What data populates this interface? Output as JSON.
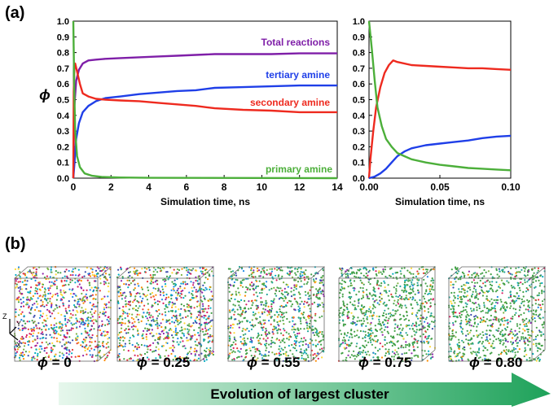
{
  "colors": {
    "total": "#7f1fa8",
    "tertiary": "#1f3fe8",
    "secondary": "#ee2a1f",
    "primary": "#4caf3a",
    "arrow_start": "#e6f7ec",
    "arrow_end": "#1ea25a"
  },
  "panel_a_label": "(a)",
  "panel_b_label": "(b)",
  "chart_data": [
    {
      "type": "line",
      "title": "",
      "xlabel": "Simulation time, ns",
      "ylabel": "ϕ",
      "xlim": [
        0,
        14
      ],
      "ylim": [
        0,
        1.0
      ],
      "xticks": [
        "0",
        "2",
        "4",
        "6",
        "8",
        "10",
        "12",
        "14"
      ],
      "yticks": [
        "0.0",
        "0.1",
        "0.2",
        "0.3",
        "0.4",
        "0.5",
        "0.6",
        "0.7",
        "0.8",
        "0.9",
        "1.0"
      ],
      "series": [
        {
          "name": "Total reactions",
          "color_key": "total",
          "x": [
            0,
            0.05,
            0.15,
            0.3,
            0.5,
            0.8,
            1.2,
            1.7,
            2.5,
            3.5,
            4.5,
            5.5,
            6.5,
            7.5,
            9,
            10.5,
            12,
            14
          ],
          "y": [
            0.0,
            0.45,
            0.62,
            0.69,
            0.73,
            0.75,
            0.755,
            0.76,
            0.765,
            0.77,
            0.775,
            0.78,
            0.785,
            0.79,
            0.79,
            0.79,
            0.795,
            0.795
          ]
        },
        {
          "name": "tertiary amine",
          "color_key": "tertiary",
          "x": [
            0,
            0.05,
            0.15,
            0.3,
            0.5,
            0.8,
            1.2,
            1.7,
            2.5,
            3.5,
            4.5,
            5.5,
            6.5,
            7.5,
            9,
            10.5,
            12,
            14
          ],
          "y": [
            0.0,
            0.08,
            0.25,
            0.35,
            0.42,
            0.46,
            0.49,
            0.51,
            0.52,
            0.535,
            0.545,
            0.555,
            0.56,
            0.575,
            0.58,
            0.585,
            0.59,
            0.59
          ]
        },
        {
          "name": "secondary amine",
          "color_key": "secondary",
          "x": [
            0,
            0.02,
            0.06,
            0.1,
            0.2,
            0.35,
            0.5,
            0.8,
            1.2,
            1.7,
            2.5,
            3.5,
            4.5,
            5.5,
            6.5,
            7.5,
            9,
            10.5,
            12,
            14
          ],
          "y": [
            0.0,
            0.55,
            0.72,
            0.73,
            0.68,
            0.6,
            0.54,
            0.52,
            0.505,
            0.5,
            0.495,
            0.49,
            0.48,
            0.47,
            0.46,
            0.445,
            0.435,
            0.43,
            0.42,
            0.42
          ]
        },
        {
          "name": "primary amine",
          "color_key": "primary",
          "x": [
            0,
            0.05,
            0.1,
            0.2,
            0.35,
            0.6,
            1.0,
            1.5,
            2.5,
            4,
            14
          ],
          "y": [
            1.0,
            0.55,
            0.3,
            0.14,
            0.07,
            0.03,
            0.015,
            0.008,
            0.004,
            0.002,
            0.0
          ]
        }
      ],
      "labels": {
        "total": "Total reactions",
        "tertiary": "tertiary amine",
        "secondary": "secondary amine",
        "primary": "primary amine"
      }
    },
    {
      "type": "line",
      "title": "",
      "xlabel": "Simulation time, ns",
      "ylabel": "",
      "xlim": [
        0,
        0.1
      ],
      "ylim": [
        0,
        1.0
      ],
      "xticks": [
        "0.00",
        "0.05",
        "0.10"
      ],
      "yticks": [
        "0.0",
        "0.1",
        "0.2",
        "0.3",
        "0.4",
        "0.5",
        "0.6",
        "0.7",
        "0.8",
        "0.9",
        "1.0"
      ],
      "series": [
        {
          "name": "secondary amine",
          "color_key": "secondary",
          "x": [
            0,
            0.001,
            0.003,
            0.005,
            0.008,
            0.011,
            0.014,
            0.017,
            0.02,
            0.03,
            0.04,
            0.05,
            0.06,
            0.07,
            0.08,
            0.09,
            0.1
          ],
          "y": [
            0.0,
            0.12,
            0.3,
            0.45,
            0.58,
            0.67,
            0.72,
            0.75,
            0.74,
            0.72,
            0.715,
            0.71,
            0.705,
            0.7,
            0.7,
            0.695,
            0.69
          ]
        },
        {
          "name": "tertiary amine",
          "color_key": "tertiary",
          "x": [
            0,
            0.004,
            0.008,
            0.012,
            0.016,
            0.02,
            0.025,
            0.03,
            0.04,
            0.05,
            0.06,
            0.07,
            0.08,
            0.09,
            0.1
          ],
          "y": [
            0.0,
            0.01,
            0.03,
            0.06,
            0.1,
            0.14,
            0.17,
            0.19,
            0.21,
            0.22,
            0.23,
            0.24,
            0.255,
            0.265,
            0.27
          ]
        },
        {
          "name": "primary amine",
          "color_key": "primary",
          "x": [
            0,
            0.002,
            0.004,
            0.006,
            0.009,
            0.012,
            0.016,
            0.02,
            0.025,
            0.03,
            0.04,
            0.05,
            0.06,
            0.07,
            0.08,
            0.09,
            0.1
          ],
          "y": [
            1.0,
            0.82,
            0.62,
            0.45,
            0.33,
            0.25,
            0.2,
            0.16,
            0.14,
            0.12,
            0.1,
            0.085,
            0.075,
            0.065,
            0.06,
            0.055,
            0.05
          ]
        }
      ]
    }
  ],
  "panel_b": {
    "phi_symbol": "ϕ",
    "snapshots": [
      {
        "phi_text": " = 0"
      },
      {
        "phi_text": " = 0.25"
      },
      {
        "phi_text": " = 0.55"
      },
      {
        "phi_text": " = 0.75"
      },
      {
        "phi_text": " = 0.80"
      }
    ],
    "axes_triad": {
      "z": "Z",
      "y": "Y",
      "x": "X"
    },
    "arrow_text": "Evolution of largest cluster"
  }
}
